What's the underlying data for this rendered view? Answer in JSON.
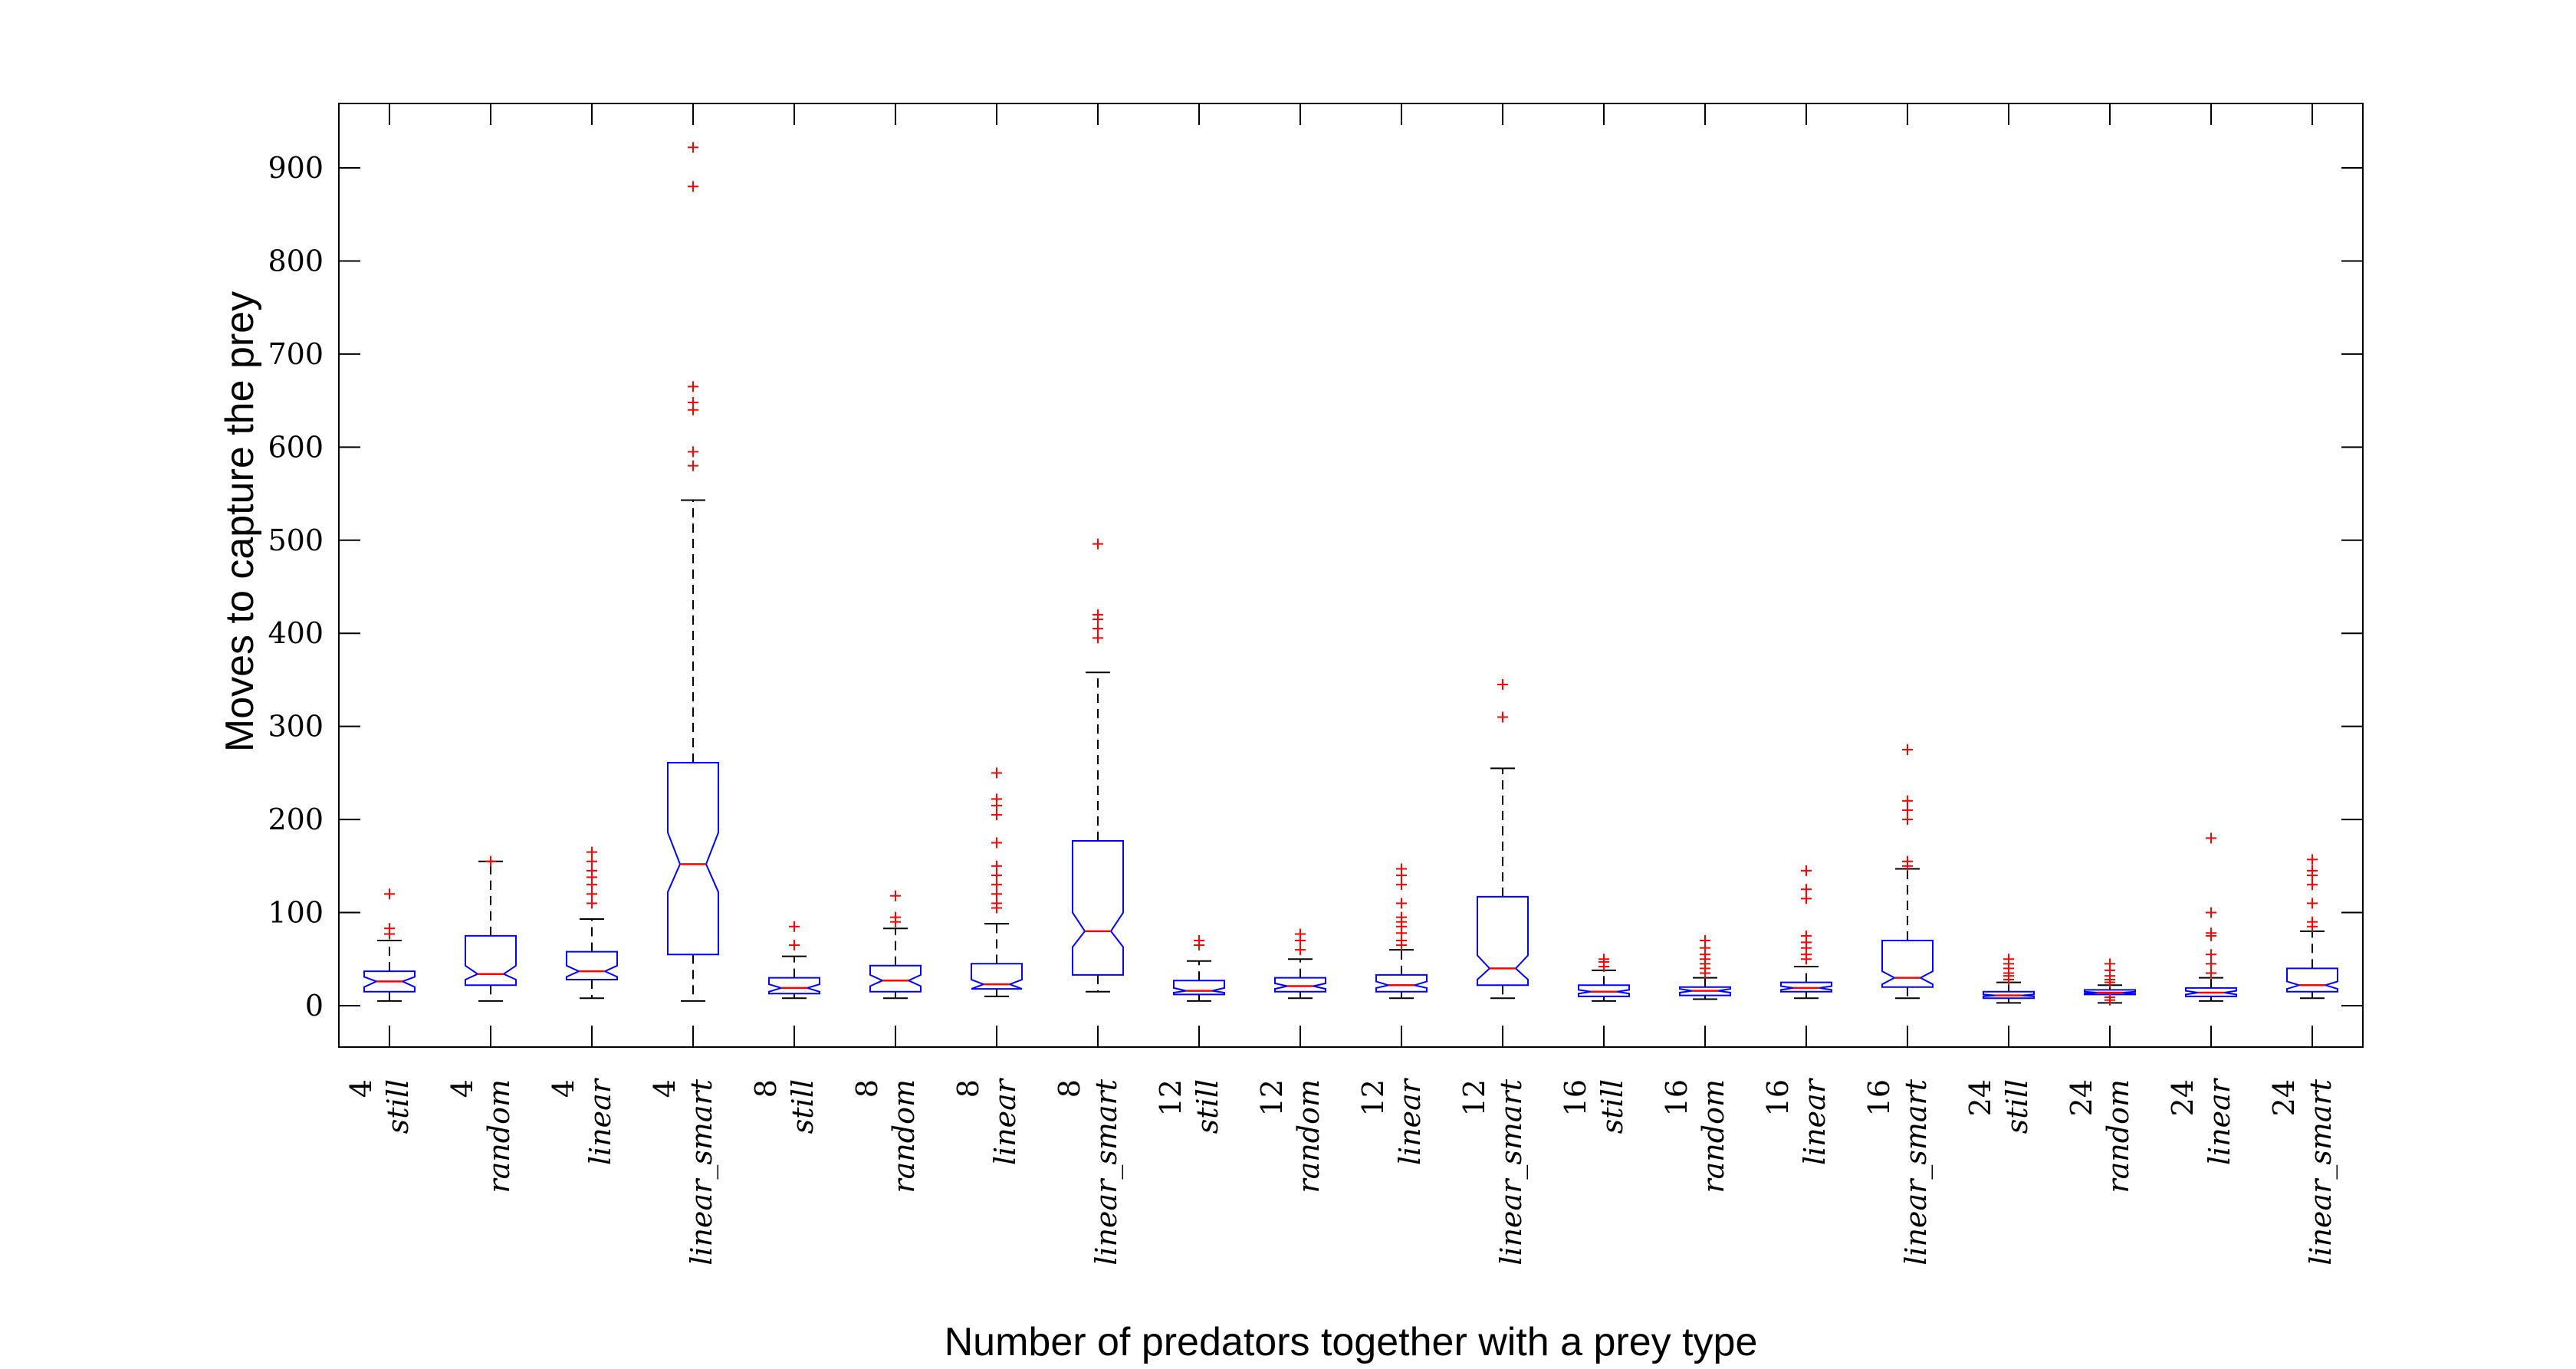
{
  "chart_data": {
    "type": "boxplot",
    "title": "",
    "xlabel": "Number of predators together with a prey type",
    "ylabel": "Moves to capture the prey",
    "ylim": [
      -45,
      975
    ],
    "yticks": [
      0,
      100,
      200,
      300,
      400,
      500,
      600,
      700,
      800,
      900
    ],
    "notched": true,
    "colors": {
      "box": "#0000ff",
      "median": "#ff0000",
      "whisker": "#000000",
      "outlier": "#ff0000",
      "axis": "#000000"
    },
    "categories": [
      {
        "count": "4",
        "prey": "still"
      },
      {
        "count": "4",
        "prey": "random"
      },
      {
        "count": "4",
        "prey": "linear"
      },
      {
        "count": "4",
        "prey": "linear_smart"
      },
      {
        "count": "8",
        "prey": "still"
      },
      {
        "count": "8",
        "prey": "random"
      },
      {
        "count": "8",
        "prey": "linear"
      },
      {
        "count": "8",
        "prey": "linear_smart"
      },
      {
        "count": "12",
        "prey": "still"
      },
      {
        "count": "12",
        "prey": "random"
      },
      {
        "count": "12",
        "prey": "linear"
      },
      {
        "count": "12",
        "prey": "linear_smart"
      },
      {
        "count": "16",
        "prey": "still"
      },
      {
        "count": "16",
        "prey": "random"
      },
      {
        "count": "16",
        "prey": "linear"
      },
      {
        "count": "16",
        "prey": "linear_smart"
      },
      {
        "count": "24",
        "prey": "still"
      },
      {
        "count": "24",
        "prey": "random"
      },
      {
        "count": "24",
        "prey": "linear"
      },
      {
        "count": "24",
        "prey": "linear_smart"
      }
    ],
    "boxes": [
      {
        "whisker_low": 5,
        "q1": 15,
        "median": 26,
        "q3": 37,
        "whisker_high": 70,
        "notch_low": 20,
        "notch_high": 31,
        "outliers": [
          77,
          83,
          120
        ]
      },
      {
        "whisker_low": 5,
        "q1": 22,
        "median": 34,
        "q3": 75,
        "whisker_high": 155,
        "notch_low": 28,
        "notch_high": 43,
        "outliers": [
          155
        ]
      },
      {
        "whisker_low": 8,
        "q1": 28,
        "median": 37,
        "q3": 58,
        "whisker_high": 93,
        "notch_low": 31,
        "notch_high": 43,
        "outliers": [
          110,
          120,
          130,
          138,
          145,
          155,
          165
        ]
      },
      {
        "whisker_low": 5,
        "q1": 55,
        "median": 152,
        "q3": 261,
        "whisker_high": 543,
        "notch_low": 122,
        "notch_high": 186,
        "outliers": [
          580,
          595,
          640,
          648,
          665,
          880,
          922
        ]
      },
      {
        "whisker_low": 8,
        "q1": 13,
        "median": 19,
        "q3": 30,
        "whisker_high": 53,
        "notch_low": 15,
        "notch_high": 23,
        "outliers": [
          65,
          85
        ]
      },
      {
        "whisker_low": 8,
        "q1": 15,
        "median": 27,
        "q3": 43,
        "whisker_high": 83,
        "notch_low": 21,
        "notch_high": 33,
        "outliers": [
          90,
          95,
          118
        ]
      },
      {
        "whisker_low": 10,
        "q1": 18,
        "median": 23,
        "q3": 45,
        "whisker_high": 88,
        "notch_low": 18,
        "notch_high": 28,
        "outliers": [
          105,
          110,
          120,
          130,
          140,
          150,
          175,
          205,
          215,
          222,
          250
        ]
      },
      {
        "whisker_low": 15,
        "q1": 33,
        "median": 80,
        "q3": 177,
        "whisker_high": 358,
        "notch_low": 63,
        "notch_high": 100,
        "outliers": [
          395,
          405,
          415,
          420,
          496
        ]
      },
      {
        "whisker_low": 5,
        "q1": 12,
        "median": 16,
        "q3": 27,
        "whisker_high": 48,
        "notch_low": 14,
        "notch_high": 19,
        "outliers": [
          65,
          70
        ]
      },
      {
        "whisker_low": 8,
        "q1": 15,
        "median": 21,
        "q3": 30,
        "whisker_high": 50,
        "notch_low": 18,
        "notch_high": 24,
        "outliers": [
          60,
          70,
          77
        ]
      },
      {
        "whisker_low": 8,
        "q1": 15,
        "median": 22,
        "q3": 33,
        "whisker_high": 60,
        "notch_low": 19,
        "notch_high": 26,
        "outliers": [
          65,
          70,
          78,
          85,
          90,
          95,
          110,
          130,
          140,
          147
        ]
      },
      {
        "whisker_low": 8,
        "q1": 22,
        "median": 40,
        "q3": 117,
        "whisker_high": 255,
        "notch_low": 28,
        "notch_high": 54,
        "outliers": [
          310,
          345
        ]
      },
      {
        "whisker_low": 5,
        "q1": 10,
        "median": 15,
        "q3": 22,
        "whisker_high": 38,
        "notch_low": 13,
        "notch_high": 17,
        "outliers": [
          42,
          47,
          50
        ]
      },
      {
        "whisker_low": 7,
        "q1": 11,
        "median": 16,
        "q3": 20,
        "whisker_high": 30,
        "notch_low": 14,
        "notch_high": 18,
        "outliers": [
          35,
          40,
          45,
          50,
          55,
          62,
          70
        ]
      },
      {
        "whisker_low": 8,
        "q1": 15,
        "median": 19,
        "q3": 25,
        "whisker_high": 42,
        "notch_low": 17,
        "notch_high": 21,
        "outliers": [
          50,
          55,
          62,
          68,
          75,
          115,
          125,
          145
        ]
      },
      {
        "whisker_low": 8,
        "q1": 20,
        "median": 30,
        "q3": 70,
        "whisker_high": 147,
        "notch_low": 23,
        "notch_high": 37,
        "outliers": [
          150,
          155,
          200,
          210,
          220,
          275
        ]
      },
      {
        "whisker_low": 3,
        "q1": 8,
        "median": 11,
        "q3": 15,
        "whisker_high": 25,
        "notch_low": 10,
        "notch_high": 12,
        "outliers": [
          28,
          32,
          35,
          40,
          45,
          50
        ]
      },
      {
        "whisker_low": 3,
        "q1": 12,
        "median": 14,
        "q3": 17,
        "whisker_high": 22,
        "notch_low": 13,
        "notch_high": 15,
        "outliers": [
          6,
          9,
          25,
          28,
          32,
          38,
          45
        ]
      },
      {
        "whisker_low": 5,
        "q1": 10,
        "median": 14,
        "q3": 19,
        "whisker_high": 30,
        "notch_low": 12,
        "notch_high": 16,
        "outliers": [
          35,
          45,
          55,
          75,
          78,
          100,
          180
        ]
      },
      {
        "whisker_low": 8,
        "q1": 15,
        "median": 22,
        "q3": 40,
        "whisker_high": 80,
        "notch_low": 18,
        "notch_high": 26,
        "outliers": [
          85,
          90,
          110,
          130,
          140,
          145,
          157
        ]
      }
    ]
  }
}
